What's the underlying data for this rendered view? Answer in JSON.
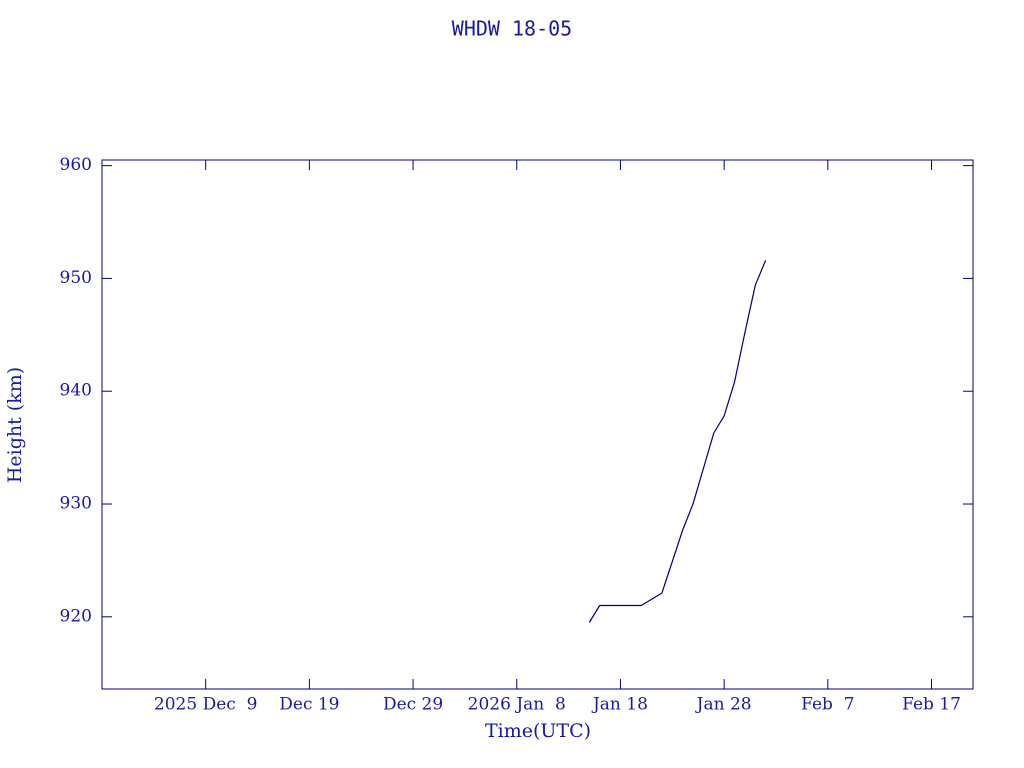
{
  "chart_data": {
    "type": "line",
    "title": "WHDW 18-05",
    "x_label": "Time(UTC)",
    "y_label": "Height (km)",
    "color": "#00006e",
    "x": [
      "2026-01-15",
      "2026-01-16",
      "2026-01-20",
      "2026-01-22",
      "2026-01-24",
      "2026-01-25",
      "2026-01-27",
      "2026-01-28",
      "2026-01-29",
      "2026-01-30",
      "2026-01-31",
      "2026-02-01"
    ],
    "values": [
      919.5,
      921.0,
      921.0,
      922.1,
      927.7,
      930.0,
      936.3,
      937.8,
      940.8,
      945.2,
      949.4,
      951.6
    ],
    "xlim": [
      "2025-11-29",
      "2026-02-21"
    ],
    "xticks": [
      {
        "value": "2025-12-09",
        "label": "2025 Dec  9"
      },
      {
        "value": "2025-12-19",
        "label": "Dec 19"
      },
      {
        "value": "2025-12-29",
        "label": "Dec 29"
      },
      {
        "value": "2026-01-08",
        "label": "2026 Jan  8"
      },
      {
        "value": "2026-01-18",
        "label": "Jan 18"
      },
      {
        "value": "2026-01-28",
        "label": "Jan 28"
      },
      {
        "value": "2026-02-07",
        "label": "Feb  7"
      },
      {
        "value": "2026-02-17",
        "label": "Feb 17"
      }
    ],
    "ylim": [
      913.6,
      960.5
    ],
    "yticks": [
      920,
      930,
      940,
      950,
      960
    ]
  }
}
